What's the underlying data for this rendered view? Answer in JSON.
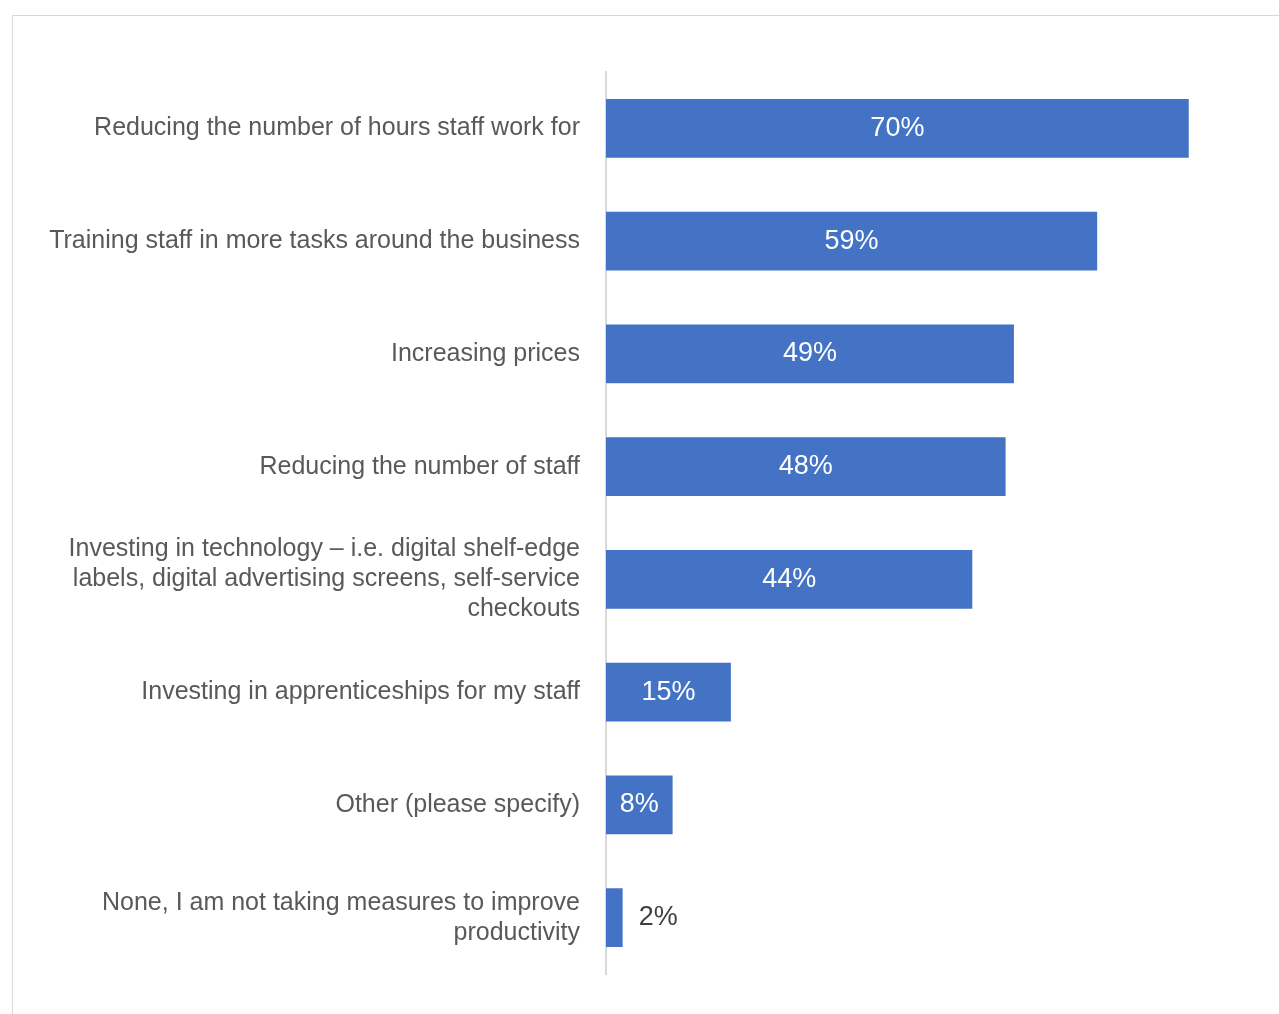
{
  "chart_data": {
    "type": "bar",
    "orientation": "horizontal",
    "categories": [
      "Reducing the number of hours staff work for",
      "Training staff in more tasks around the business",
      "Increasing prices",
      "Reducing the number of staff",
      "Investing in technology – i.e. digital shelf-edge labels, digital advertising screens, self-service checkouts",
      "Investing in apprenticeships for my staff",
      "Other (please specify)",
      "None, I am not taking measures to improve productivity"
    ],
    "values": [
      70,
      59,
      49,
      48,
      44,
      15,
      8,
      2
    ],
    "value_labels": [
      "70%",
      "59%",
      "49%",
      "48%",
      "44%",
      "15%",
      "8%",
      "2%"
    ],
    "color": "#4472c4",
    "tick_labels": "y",
    "grid": false
  }
}
